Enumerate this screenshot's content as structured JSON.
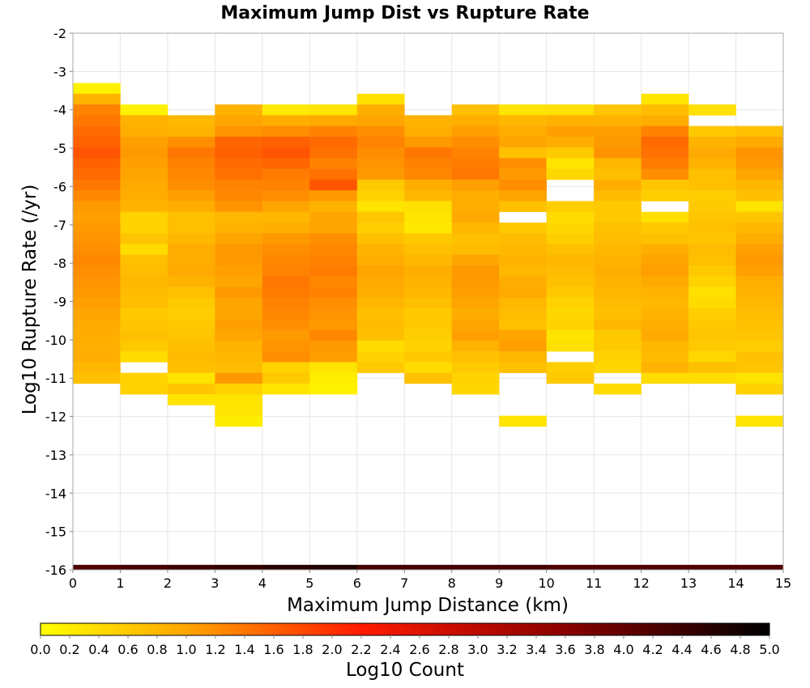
{
  "chart_data": {
    "type": "heatmap",
    "title": "Maximum Jump Dist vs Rupture Rate",
    "xlabel": "Maximum Jump Distance (km)",
    "ylabel": "Log10 Rupture Rate (/yr)",
    "xlim": [
      0,
      15
    ],
    "ylim": [
      -16,
      -2
    ],
    "x_ticks": [
      0,
      1,
      2,
      3,
      4,
      5,
      6,
      7,
      8,
      9,
      10,
      11,
      12,
      13,
      14,
      15
    ],
    "y_ticks": [
      -2,
      -3,
      -4,
      -5,
      -6,
      -7,
      -8,
      -9,
      -10,
      -11,
      -12,
      -13,
      -14,
      -15,
      -16
    ],
    "x_tick_labels": [
      "0",
      "1",
      "2",
      "3",
      "4",
      "5",
      "6",
      "7",
      "8",
      "9",
      "10",
      "11",
      "12",
      "13",
      "14",
      "15"
    ],
    "y_tick_labels": [
      "-2",
      "-3",
      "-4",
      "-5",
      "-6",
      "-7",
      "-8",
      "-9",
      "-10",
      "-11",
      "-12",
      "-13",
      "-14",
      "-15",
      "-16"
    ],
    "bin_width_x": 1,
    "bin_height_y": 0.28,
    "bin_y_origin": -3.3,
    "grid": true,
    "colorbar": {
      "label": "Log10 Count",
      "min": 0.0,
      "max": 5.0,
      "colormap": "hot-reversed",
      "position": "bottom",
      "tick_labels": [
        "0.0",
        "0.2",
        "0.4",
        "0.6",
        "0.8",
        "1.0",
        "1.2",
        "1.4",
        "1.6",
        "1.8",
        "2.0",
        "2.2",
        "2.4",
        "2.6",
        "2.8",
        "3.0",
        "3.2",
        "3.4",
        "3.6",
        "3.8",
        "4.0",
        "4.2",
        "4.4",
        "4.6",
        "4.8",
        "5.0"
      ]
    },
    "bottom_row": {
      "y": -16,
      "values": [
        4.2,
        4.3,
        4.4,
        4.5,
        4.6,
        4.7,
        4.3,
        4.3,
        4.3,
        4.3,
        4.2,
        4.2,
        4.2,
        4.2,
        4.2
      ]
    },
    "columns": [
      [
        0.15,
        0.85,
        1.3,
        1.4,
        1.5,
        1.6,
        1.7,
        1.6,
        1.5,
        1.4,
        1.25,
        1.1,
        1.05,
        1.1,
        1.15,
        1.2,
        1.25,
        1.2,
        1.15,
        1.1,
        1.05,
        1.0,
        0.95,
        0.9,
        0.9,
        0.9,
        0.8,
        0.7
      ],
      [
        null,
        null,
        0.15,
        0.85,
        0.9,
        1.05,
        1.1,
        1.05,
        1.0,
        0.95,
        0.9,
        0.85,
        0.5,
        0.5,
        0.65,
        0.4,
        0.7,
        0.75,
        0.8,
        0.75,
        0.7,
        0.6,
        0.65,
        0.7,
        0.6,
        0.4,
        null,
        0.5,
        0.5
      ],
      [
        null,
        null,
        null,
        0.8,
        0.85,
        1.2,
        1.4,
        1.3,
        1.25,
        1.2,
        1.05,
        0.9,
        0.7,
        0.7,
        0.8,
        0.9,
        0.9,
        0.95,
        0.85,
        0.7,
        0.6,
        0.55,
        0.6,
        0.65,
        0.7,
        0.75,
        0.7,
        0.3,
        0.65,
        0.3
      ],
      [
        null,
        null,
        0.85,
        1.0,
        1.15,
        1.55,
        1.6,
        1.5,
        1.45,
        1.3,
        1.25,
        1.15,
        0.8,
        0.85,
        1.0,
        1.1,
        1.1,
        1.05,
        1.0,
        1.1,
        1.0,
        1.0,
        1.05,
        1.0,
        0.85,
        0.8,
        0.75,
        1.1,
        0.5,
        0.3,
        0.3,
        0.2
      ],
      [
        null,
        null,
        0.25,
        0.9,
        1.2,
        1.6,
        1.7,
        1.55,
        1.35,
        1.3,
        1.2,
        1.0,
        0.8,
        0.9,
        1.1,
        1.2,
        1.25,
        1.3,
        1.4,
        1.35,
        1.3,
        1.25,
        1.2,
        1.1,
        1.15,
        1.2,
        0.5,
        0.6,
        0.3
      ],
      [
        null,
        null,
        0.3,
        0.95,
        1.3,
        1.5,
        1.45,
        1.3,
        1.45,
        1.7,
        1.1,
        0.85,
        1.0,
        1.0,
        1.2,
        1.25,
        1.3,
        1.35,
        1.25,
        1.3,
        1.2,
        1.15,
        1.1,
        1.25,
        1.1,
        1.05,
        0.3,
        0.2,
        0.15
      ],
      [
        null,
        0.35,
        0.9,
        1.0,
        1.2,
        1.3,
        1.2,
        1.15,
        1.1,
        0.6,
        0.5,
        0.3,
        0.65,
        0.55,
        0.7,
        0.85,
        0.9,
        1.0,
        0.95,
        0.9,
        0.8,
        0.7,
        0.75,
        0.7,
        0.4,
        0.5,
        0.6
      ],
      [
        null,
        null,
        null,
        0.85,
        0.9,
        1.1,
        1.4,
        1.3,
        1.25,
        0.9,
        0.8,
        0.35,
        0.3,
        0.25,
        0.6,
        0.7,
        0.8,
        0.9,
        0.85,
        0.8,
        0.7,
        0.6,
        0.6,
        0.55,
        0.5,
        0.6,
        0.4,
        0.7
      ],
      [
        null,
        null,
        0.7,
        0.9,
        1.05,
        1.2,
        1.3,
        1.35,
        1.4,
        1.05,
        0.9,
        0.9,
        0.95,
        0.8,
        0.7,
        0.75,
        1.0,
        1.1,
        1.1,
        1.05,
        1.0,
        0.9,
        1.0,
        1.05,
        0.85,
        0.7,
        0.6,
        0.5,
        0.45
      ],
      [
        null,
        null,
        0.3,
        0.8,
        0.9,
        1.0,
        0.7,
        1.2,
        1.1,
        1.2,
        1.0,
        0.7,
        null,
        0.6,
        0.75,
        0.8,
        0.85,
        0.8,
        0.9,
        0.95,
        0.8,
        0.75,
        0.7,
        1.0,
        1.05,
        0.8,
        0.7,
        null,
        null,
        null,
        null,
        0.3
      ],
      [
        null,
        null,
        0.35,
        0.85,
        1.05,
        0.9,
        0.6,
        0.3,
        0.45,
        null,
        null,
        0.55,
        0.4,
        0.45,
        0.55,
        0.7,
        0.8,
        0.75,
        0.7,
        0.6,
        0.5,
        0.45,
        0.5,
        0.3,
        0.35,
        null,
        0.55,
        0.6
      ],
      [
        null,
        null,
        0.65,
        0.85,
        1.05,
        1.1,
        1.15,
        0.8,
        0.7,
        0.9,
        0.75,
        0.6,
        0.6,
        0.7,
        0.75,
        0.8,
        0.85,
        0.9,
        0.85,
        0.8,
        0.75,
        0.7,
        0.8,
        0.6,
        0.6,
        0.5,
        0.45,
        null,
        0.4
      ],
      [
        null,
        0.3,
        0.75,
        0.9,
        1.3,
        1.5,
        1.45,
        1.35,
        1.2,
        0.65,
        0.55,
        null,
        0.35,
        0.6,
        0.7,
        0.9,
        1.0,
        1.05,
        0.95,
        0.85,
        0.8,
        0.85,
        0.9,
        0.95,
        0.8,
        0.75,
        0.85,
        0.4
      ],
      [
        null,
        null,
        0.35,
        null,
        0.6,
        0.85,
        0.95,
        0.85,
        0.7,
        0.7,
        0.55,
        0.6,
        0.65,
        0.7,
        0.65,
        0.75,
        0.7,
        0.6,
        0.5,
        0.35,
        0.4,
        0.55,
        0.6,
        0.65,
        0.6,
        0.45,
        0.7,
        0.4
      ],
      [
        null,
        null,
        null,
        null,
        0.7,
        0.95,
        1.15,
        1.1,
        1.0,
        0.8,
        0.7,
        0.3,
        0.65,
        0.8,
        0.9,
        1.05,
        1.1,
        1.05,
        0.9,
        0.85,
        0.8,
        0.75,
        0.7,
        0.65,
        0.55,
        0.7,
        0.65,
        0.3,
        0.5,
        null,
        null,
        0.3
      ]
    ]
  }
}
